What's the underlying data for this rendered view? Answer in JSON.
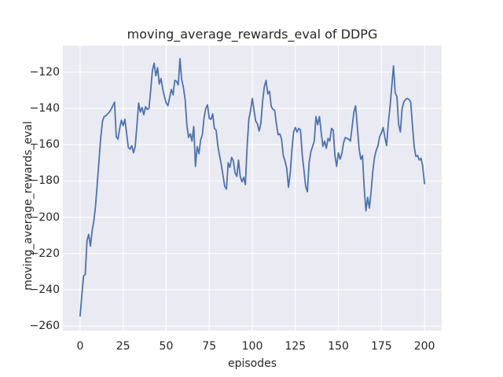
{
  "chart_data": {
    "type": "line",
    "title": "moving_average_rewards_eval of DDPG",
    "xlabel": "episodes",
    "ylabel": "moving_average_rewards_eval",
    "xlim": [
      -10,
      210
    ],
    "ylim": [
      -262.6,
      -105.3
    ],
    "xticks": [
      0,
      25,
      50,
      75,
      100,
      125,
      150,
      175,
      200
    ],
    "yticks": [
      -120,
      -140,
      -160,
      -180,
      -200,
      -220,
      -240,
      -260
    ],
    "grid": true,
    "legend": "none",
    "series": [
      {
        "name": "moving_average_rewards_eval",
        "color": "#4C72B0",
        "x_start": 0,
        "x_step": 1,
        "values": [
          -254.5,
          -243,
          -232.5,
          -231.5,
          -213,
          -209.5,
          -216,
          -207.5,
          -202,
          -193.5,
          -181,
          -168.5,
          -156,
          -147,
          -144.5,
          -144,
          -143,
          -142,
          -140.5,
          -138.5,
          -136.5,
          -155.5,
          -157,
          -151,
          -146.5,
          -149.5,
          -146,
          -153.5,
          -161.5,
          -162.5,
          -160.5,
          -164.5,
          -161,
          -149.5,
          -137,
          -142,
          -139.5,
          -143.5,
          -139,
          -140.5,
          -140,
          -130,
          -119,
          -115,
          -122,
          -117.5,
          -126.5,
          -123.5,
          -129.5,
          -133.5,
          -137,
          -138.5,
          -134,
          -129.5,
          -132.5,
          -124.5,
          -125,
          -127,
          -112.5,
          -124,
          -128.5,
          -135,
          -149,
          -156,
          -154,
          -158,
          -150,
          -172,
          -161,
          -165,
          -157.5,
          -154.5,
          -145,
          -140,
          -138,
          -145.5,
          -146,
          -143,
          -151,
          -152,
          -160.5,
          -166,
          -171,
          -177,
          -183,
          -184.5,
          -170,
          -172.5,
          -167,
          -169,
          -175.5,
          -177.5,
          -168.5,
          -177.5,
          -180.5,
          -178,
          -182,
          -161,
          -146,
          -141,
          -134.5,
          -141,
          -147,
          -148.5,
          -152.5,
          -148,
          -136,
          -128,
          -124.5,
          -132,
          -130.5,
          -139,
          -140.5,
          -141,
          -148.5,
          -154.5,
          -154,
          -157,
          -166,
          -169,
          -173,
          -183.5,
          -176,
          -163,
          -153,
          -150.5,
          -153,
          -151,
          -152,
          -165.5,
          -174,
          -183,
          -186,
          -170,
          -164,
          -161,
          -158,
          -144.5,
          -149,
          -144.5,
          -153,
          -161,
          -158,
          -162,
          -156.5,
          -158,
          -151,
          -152,
          -166,
          -172,
          -164.5,
          -168,
          -165,
          -159,
          -156,
          -156.5,
          -157,
          -158,
          -150,
          -142,
          -138.5,
          -150,
          -162,
          -168,
          -166,
          -184,
          -196.5,
          -189,
          -195,
          -186,
          -174.5,
          -167,
          -163,
          -160.5,
          -155.5,
          -153.5,
          -150.5,
          -156,
          -160.5,
          -148,
          -139,
          -128,
          -116.5,
          -131.5,
          -133.5,
          -149,
          -153,
          -140,
          -136.5,
          -135,
          -134.5,
          -135,
          -136.5,
          -149,
          -161,
          -166.5,
          -166,
          -168.5,
          -167.5,
          -172,
          -181.5
        ]
      }
    ]
  },
  "colors": {
    "line": "#4C72B0",
    "plot_bg": "#EAEAF2",
    "grid": "#FFFFFF",
    "text": "#262626",
    "figure_bg": "#FFFFFF"
  }
}
